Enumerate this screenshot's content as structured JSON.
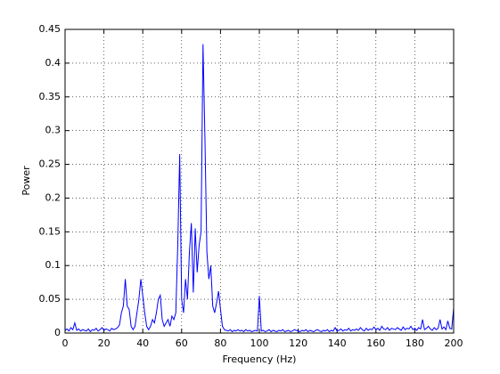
{
  "chart_data": {
    "type": "line",
    "xlabel": "Frequency (Hz)",
    "ylabel": "Power",
    "color": "#0000ff",
    "x": [
      0,
      1,
      2,
      3,
      4,
      5,
      6,
      7,
      8,
      9,
      10,
      11,
      12,
      13,
      14,
      15,
      16,
      17,
      18,
      19,
      20,
      21,
      22,
      23,
      24,
      25,
      26,
      27,
      28,
      29,
      30,
      31,
      32,
      33,
      34,
      35,
      36,
      37,
      38,
      39,
      40,
      41,
      42,
      43,
      44,
      45,
      46,
      47,
      48,
      49,
      50,
      51,
      52,
      53,
      54,
      55,
      56,
      57,
      58,
      59,
      60,
      61,
      62,
      63,
      64,
      65,
      66,
      67,
      68,
      69,
      70,
      71,
      72,
      73,
      74,
      75,
      76,
      77,
      78,
      79,
      80,
      81,
      82,
      83,
      84,
      85,
      86,
      87,
      88,
      89,
      90,
      91,
      92,
      93,
      94,
      95,
      96,
      97,
      98,
      99,
      100,
      101,
      102,
      103,
      104,
      105,
      106,
      107,
      108,
      109,
      110,
      111,
      112,
      113,
      114,
      115,
      116,
      117,
      118,
      119,
      120,
      121,
      122,
      123,
      124,
      125,
      126,
      127,
      128,
      129,
      130,
      131,
      132,
      133,
      134,
      135,
      136,
      137,
      138,
      139,
      140,
      141,
      142,
      143,
      144,
      145,
      146,
      147,
      148,
      149,
      150,
      151,
      152,
      153,
      154,
      155,
      156,
      157,
      158,
      159,
      160,
      161,
      162,
      163,
      164,
      165,
      166,
      167,
      168,
      169,
      170,
      171,
      172,
      173,
      174,
      175,
      176,
      177,
      178,
      179,
      180,
      181,
      182,
      183,
      184,
      185,
      186,
      187,
      188,
      189,
      190,
      191,
      192,
      193,
      194,
      195,
      196,
      197,
      198,
      199,
      200
    ],
    "values": [
      0.004,
      0.006,
      0.003,
      0.008,
      0.005,
      0.015,
      0.004,
      0.006,
      0.003,
      0.005,
      0.004,
      0.003,
      0.006,
      0.002,
      0.005,
      0.004,
      0.007,
      0.003,
      0.005,
      0.008,
      0.004,
      0.006,
      0.005,
      0.003,
      0.007,
      0.005,
      0.006,
      0.008,
      0.012,
      0.03,
      0.04,
      0.08,
      0.04,
      0.035,
      0.01,
      0.005,
      0.01,
      0.03,
      0.05,
      0.08,
      0.055,
      0.03,
      0.01,
      0.005,
      0.01,
      0.02,
      0.015,
      0.03,
      0.05,
      0.056,
      0.02,
      0.01,
      0.015,
      0.02,
      0.01,
      0.025,
      0.02,
      0.03,
      0.13,
      0.265,
      0.05,
      0.03,
      0.08,
      0.05,
      0.12,
      0.163,
      0.06,
      0.155,
      0.09,
      0.13,
      0.15,
      0.428,
      0.287,
      0.12,
      0.08,
      0.1,
      0.04,
      0.03,
      0.045,
      0.062,
      0.035,
      0.01,
      0.005,
      0.004,
      0.003,
      0.005,
      0.002,
      0.004,
      0.003,
      0.005,
      0.003,
      0.004,
      0.002,
      0.005,
      0.003,
      0.004,
      0.002,
      0.003,
      0.004,
      0.003,
      0.055,
      0.003,
      0.004,
      0.002,
      0.003,
      0.005,
      0.002,
      0.004,
      0.003,
      0.002,
      0.004,
      0.003,
      0.005,
      0.002,
      0.003,
      0.004,
      0.002,
      0.003,
      0.005,
      0.004,
      0.003,
      0.002,
      0.004,
      0.003,
      0.005,
      0.002,
      0.004,
      0.003,
      0.002,
      0.004,
      0.005,
      0.003,
      0.002,
      0.004,
      0.003,
      0.005,
      0.002,
      0.004,
      0.003,
      0.008,
      0.003,
      0.004,
      0.006,
      0.003,
      0.005,
      0.004,
      0.007,
      0.003,
      0.005,
      0.004,
      0.006,
      0.004,
      0.008,
      0.005,
      0.003,
      0.007,
      0.004,
      0.006,
      0.005,
      0.009,
      0.005,
      0.007,
      0.004,
      0.01,
      0.006,
      0.005,
      0.008,
      0.004,
      0.007,
      0.006,
      0.005,
      0.008,
      0.006,
      0.004,
      0.009,
      0.005,
      0.007,
      0.006,
      0.01,
      0.005,
      0.007,
      0.004,
      0.008,
      0.006,
      0.02,
      0.005,
      0.007,
      0.01,
      0.006,
      0.004,
      0.008,
      0.005,
      0.007,
      0.02,
      0.006,
      0.009,
      0.005,
      0.018,
      0.007,
      0.006,
      0.037
    ],
    "xlim": [
      0,
      200
    ],
    "xticks": [
      0,
      20,
      40,
      60,
      80,
      100,
      120,
      140,
      160,
      180,
      200
    ],
    "ylim": [
      0,
      0.45
    ],
    "yticks": [
      0,
      0.05,
      0.1,
      0.15,
      0.2,
      0.25,
      0.3,
      0.35,
      0.4,
      0.45
    ],
    "grid": true
  }
}
